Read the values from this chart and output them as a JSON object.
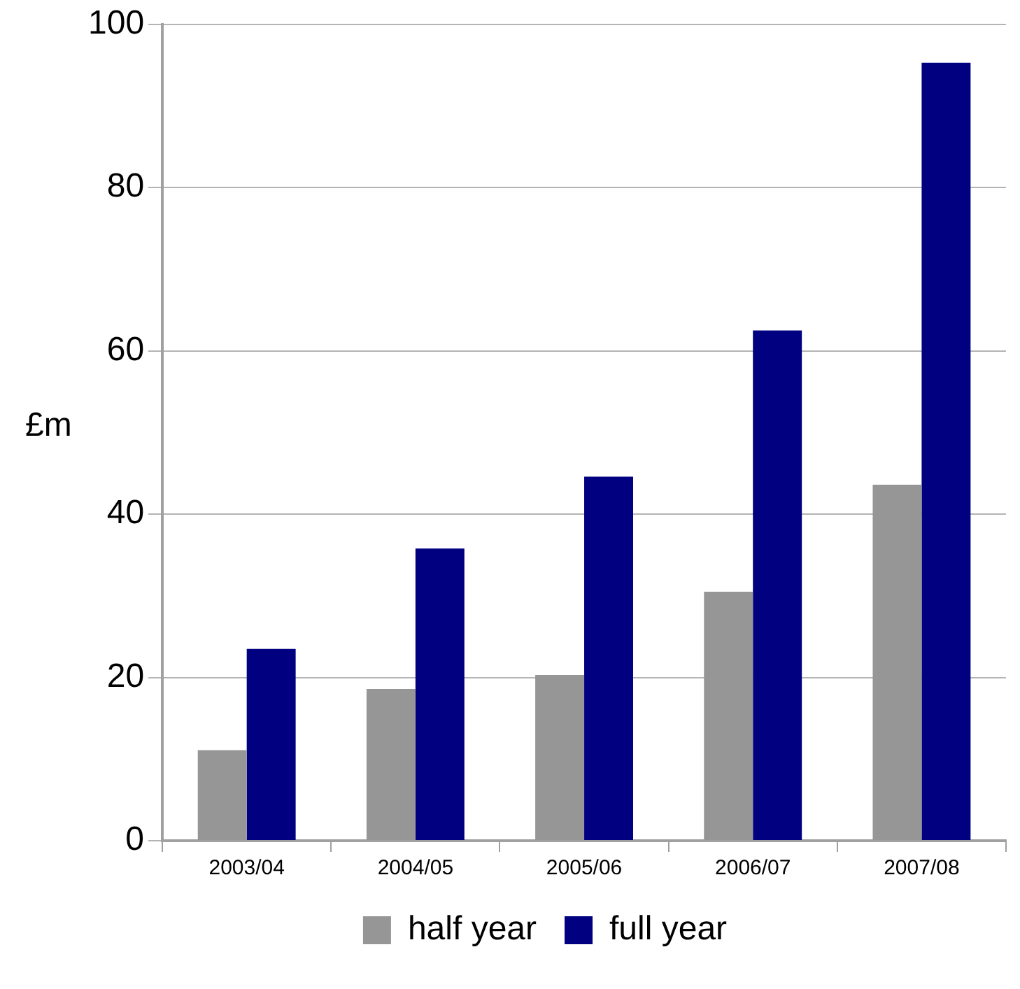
{
  "chart_data": {
    "type": "bar",
    "ylabel": "£m",
    "categories": [
      "2003/04",
      "2004/05",
      "2005/06",
      "2006/07",
      "2007/08"
    ],
    "series": [
      {
        "name": "half year",
        "color": "#969696",
        "values": [
          11.1,
          18.6,
          20.3,
          30.5,
          43.6
        ]
      },
      {
        "name": "full year",
        "color": "#000080",
        "values": [
          23.5,
          35.8,
          44.6,
          62.5,
          95.3
        ]
      }
    ],
    "ylim": [
      0,
      100
    ],
    "yticks": [
      0,
      20,
      40,
      60,
      80,
      100
    ],
    "grid": "y",
    "legend": "bottom"
  }
}
